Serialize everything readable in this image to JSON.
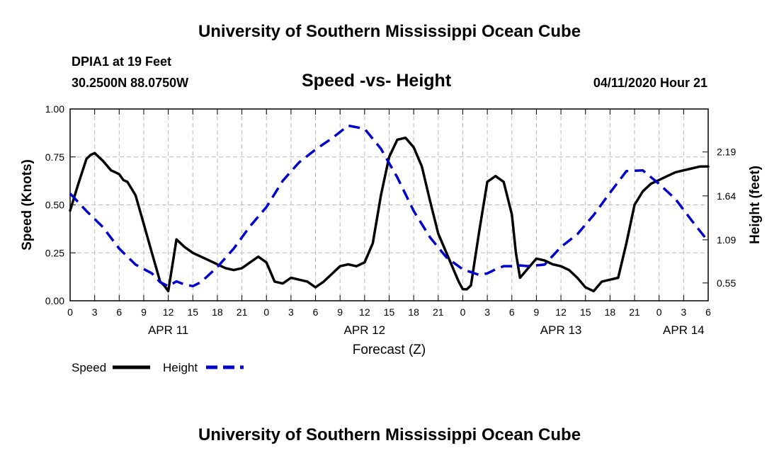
{
  "header": {
    "title": "University of Southern Mississippi Ocean Cube",
    "station": "DPIA1 at 19 Feet",
    "coords": "30.2500N 88.0750W",
    "datetime": "04/11/2020 Hour 21"
  },
  "footer": {
    "title": "University of Southern Mississippi Ocean Cube"
  },
  "chart_data": {
    "type": "line",
    "title": "Speed -vs- Height",
    "xlabel": "Forecast (Z)",
    "ylabel": "Speed (Knots)",
    "y2label": "Height (feet)",
    "x_unit": "hours since APR 11 00Z",
    "xlim": [
      0,
      78
    ],
    "ylim": [
      0,
      1
    ],
    "y2lim": [
      0.327,
      2.728
    ],
    "x_ticks": [
      0,
      3,
      6,
      9,
      12,
      15,
      18,
      21,
      24,
      27,
      30,
      33,
      36,
      39,
      42,
      45,
      48,
      51,
      54,
      57,
      60,
      63,
      66,
      69,
      72,
      75,
      78
    ],
    "x_tick_labels": [
      "0",
      "3",
      "6",
      "9",
      "12",
      "15",
      "18",
      "21",
      "0",
      "3",
      "6",
      "9",
      "12",
      "15",
      "18",
      "21",
      "0",
      "3",
      "6",
      "9",
      "12",
      "15",
      "18",
      "21",
      "0",
      "3",
      "6"
    ],
    "day_labels": [
      {
        "x": 12,
        "label": "APR 11"
      },
      {
        "x": 36,
        "label": "APR 12"
      },
      {
        "x": 60,
        "label": "APR 13"
      },
      {
        "x": 75,
        "label": "APR 14"
      }
    ],
    "y_ticks": [
      0,
      0.25,
      0.5,
      0.75,
      1
    ],
    "y_tick_labels": [
      "0.00",
      "0.25",
      "0.50",
      "0.75",
      "1.00"
    ],
    "y2_ticks": [
      0.55,
      1.09,
      1.64,
      2.19
    ],
    "y2_tick_labels": [
      "0.55",
      "1.09",
      "1.64",
      "2.19"
    ],
    "grid": true,
    "legend": [
      "Speed",
      "Height"
    ],
    "series": [
      {
        "name": "Speed",
        "axis": "left",
        "color": "#000000",
        "dash": "solid",
        "x": [
          0,
          1,
          2,
          2.5,
          3,
          3.5,
          4,
          5,
          6,
          6.5,
          7,
          8,
          9,
          10,
          11,
          11.5,
          12,
          13,
          14,
          15,
          16,
          17,
          18,
          19,
          20,
          21,
          22,
          23,
          24,
          25,
          26,
          27,
          28,
          29,
          30,
          31,
          32,
          33,
          34,
          35,
          36,
          37,
          38,
          39,
          40,
          41,
          42,
          43,
          44,
          45,
          46,
          47,
          47.5,
          48,
          48.5,
          49,
          50,
          51,
          52,
          53,
          54,
          54.5,
          55,
          56,
          57,
          58,
          59,
          60,
          61,
          62,
          63,
          64,
          65,
          66,
          67,
          68,
          69,
          70,
          71,
          72,
          73,
          74,
          75,
          76,
          77,
          78
        ],
        "values": [
          0.47,
          0.61,
          0.74,
          0.76,
          0.77,
          0.75,
          0.73,
          0.68,
          0.66,
          0.63,
          0.62,
          0.55,
          0.4,
          0.25,
          0.1,
          0.08,
          0.05,
          0.32,
          0.28,
          0.25,
          0.23,
          0.21,
          0.19,
          0.17,
          0.16,
          0.17,
          0.2,
          0.23,
          0.2,
          0.1,
          0.09,
          0.12,
          0.11,
          0.1,
          0.07,
          0.1,
          0.14,
          0.18,
          0.19,
          0.18,
          0.2,
          0.3,
          0.55,
          0.75,
          0.84,
          0.85,
          0.8,
          0.7,
          0.52,
          0.35,
          0.25,
          0.15,
          0.1,
          0.06,
          0.06,
          0.08,
          0.36,
          0.62,
          0.65,
          0.62,
          0.45,
          0.25,
          0.12,
          0.17,
          0.22,
          0.21,
          0.19,
          0.18,
          0.16,
          0.12,
          0.07,
          0.05,
          0.1,
          0.11,
          0.12,
          0.3,
          0.5,
          0.57,
          0.61,
          0.63,
          0.65,
          0.67,
          0.68,
          0.69,
          0.7,
          0.7
        ]
      },
      {
        "name": "Height",
        "axis": "right",
        "color": "#0000cc",
        "dash": "dashed",
        "x": [
          0,
          2,
          4,
          6,
          8,
          10,
          11,
          12,
          13,
          14,
          15,
          16,
          18,
          20,
          22,
          24,
          26,
          28,
          30,
          32,
          34,
          36,
          38,
          40,
          42,
          44,
          46,
          48,
          50,
          51,
          52,
          53,
          54,
          55,
          56,
          58,
          60,
          62,
          64,
          66,
          68,
          70,
          72,
          74,
          76,
          78
        ],
        "values": [
          1.67,
          1.45,
          1.25,
          0.98,
          0.78,
          0.67,
          0.56,
          0.51,
          0.57,
          0.53,
          0.51,
          0.56,
          0.75,
          0.98,
          1.26,
          1.5,
          1.83,
          2.06,
          2.22,
          2.36,
          2.52,
          2.48,
          2.23,
          1.87,
          1.45,
          1.12,
          0.87,
          0.72,
          0.65,
          0.67,
          0.72,
          0.76,
          0.76,
          0.77,
          0.76,
          0.78,
          1.0,
          1.16,
          1.4,
          1.68,
          1.95,
          1.96,
          1.79,
          1.6,
          1.33,
          1.07
        ]
      }
    ]
  }
}
